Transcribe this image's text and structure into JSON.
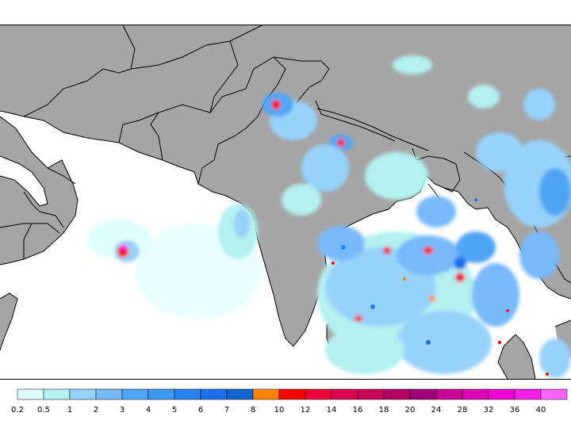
{
  "legend": {
    "colors": [
      "#e0ffff",
      "#b4f0f0",
      "#96d2fa",
      "#78b9fa",
      "#50a5f5",
      "#3c97f5",
      "#2883f0",
      "#1e6eeb",
      "#1464d2",
      "#ff8200",
      "#ff0000",
      "#f0003c",
      "#dc0050",
      "#c8005a",
      "#b40064",
      "#a00078",
      "#c80096",
      "#dc00b4",
      "#f000d2",
      "#ff1ee6",
      "#ff64ff"
    ],
    "labels": [
      "0.2",
      "0.5",
      "1",
      "2",
      "3",
      "4",
      "5",
      "6",
      "7",
      "8",
      "10",
      "12",
      "14",
      "16",
      "18",
      "20",
      "24",
      "28",
      "32",
      "36",
      "40"
    ]
  },
  "colors": {
    "land": "#a5a5a5",
    "ocean": "#ffffff",
    "border": "#000000"
  }
}
